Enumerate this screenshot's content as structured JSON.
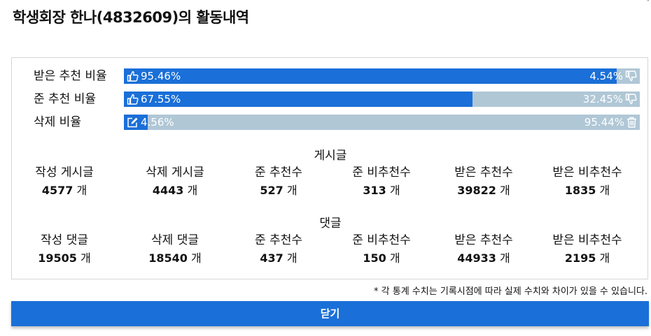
{
  "header": {
    "title": "학생회장 한나(4832609)의 활동내역",
    "corner_mark": "ˆ"
  },
  "ratios": [
    {
      "label": "받은 추천 비율",
      "left_text": "95.46%",
      "right_text": "4.54%",
      "fill_percent": 95.46,
      "left_icon": "thumbs-up-icon",
      "right_icon": "thumbs-down-icon"
    },
    {
      "label": "준 추천 비율",
      "left_text": "67.55%",
      "right_text": "32.45%",
      "fill_percent": 67.55,
      "left_icon": "thumbs-up-icon",
      "right_icon": "thumbs-down-icon"
    },
    {
      "label": "삭제 비율",
      "left_text": "4.56%",
      "right_text": "95.44%",
      "fill_percent": 4.56,
      "left_icon": "edit-icon",
      "right_icon": "trash-icon"
    }
  ],
  "posts": {
    "title": "게시글",
    "unit": "개",
    "items": [
      {
        "label": "작성 게시글",
        "value": "4577"
      },
      {
        "label": "삭제 게시글",
        "value": "4443"
      },
      {
        "label": "준 추천수",
        "value": "527"
      },
      {
        "label": "준 비추천수",
        "value": "313"
      },
      {
        "label": "받은 추천수",
        "value": "39822"
      },
      {
        "label": "받은 비추천수",
        "value": "1835"
      }
    ]
  },
  "comments": {
    "title": "댓글",
    "unit": "개",
    "items": [
      {
        "label": "작성 댓글",
        "value": "19505"
      },
      {
        "label": "삭제 댓글",
        "value": "18540"
      },
      {
        "label": "준 추천수",
        "value": "437"
      },
      {
        "label": "준 비추천수",
        "value": "150"
      },
      {
        "label": "받은 추천수",
        "value": "44933"
      },
      {
        "label": "받은 비추천수",
        "value": "2195"
      }
    ]
  },
  "note": "* 각 통계 수치는 기록시점에 따라 실제 수치와 차이가 있을 수 있습니다.",
  "colors": {
    "accent": "#1a6fd8",
    "track": "#b0c7d6"
  },
  "footer": {
    "close_label": "닫기"
  }
}
